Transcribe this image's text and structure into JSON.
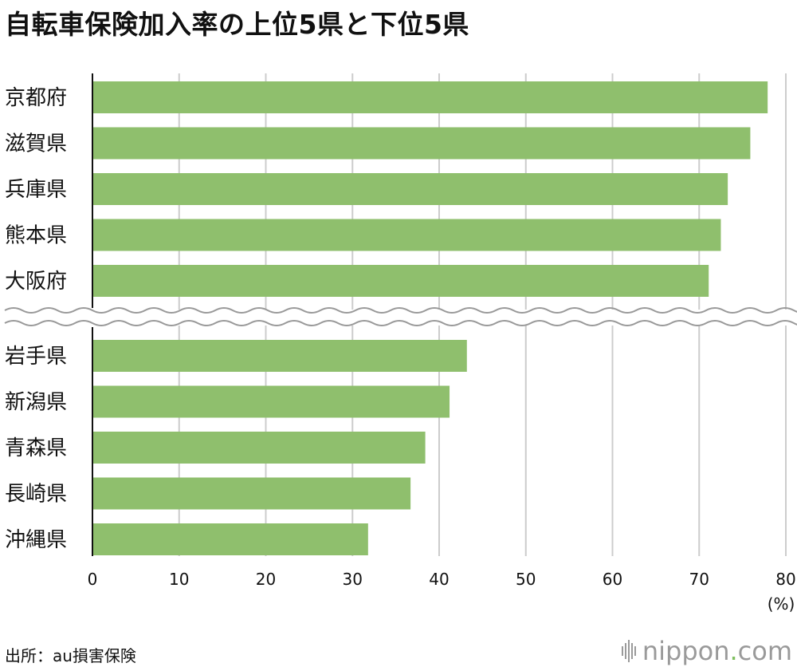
{
  "title": "自転車保険加入率の上位5県と下位5県",
  "source": "出所：au損害保険",
  "logo": {
    "name": "nippon",
    "dot": ".",
    "tld": "com"
  },
  "colors": {
    "bar": "#8fbf6d",
    "grid": "#cccccc",
    "axis": "#111111"
  },
  "chart_data": {
    "type": "bar",
    "orientation": "horizontal",
    "axis_break": true,
    "groups": [
      {
        "categories": [
          "京都府",
          "滋賀県",
          "兵庫県",
          "熊本県",
          "大阪府"
        ],
        "values": [
          77.9,
          75.9,
          73.3,
          72.5,
          71.1
        ]
      },
      {
        "categories": [
          "岩手県",
          "新潟県",
          "青森県",
          "長崎県",
          "沖縄県"
        ],
        "values": [
          43.2,
          41.2,
          38.4,
          36.7,
          31.8
        ]
      }
    ],
    "xlim": [
      0,
      80
    ],
    "xticks": [
      "0",
      "10",
      "20",
      "30",
      "40",
      "50",
      "60",
      "70",
      "80"
    ],
    "unit": "(%)",
    "grid": true
  }
}
